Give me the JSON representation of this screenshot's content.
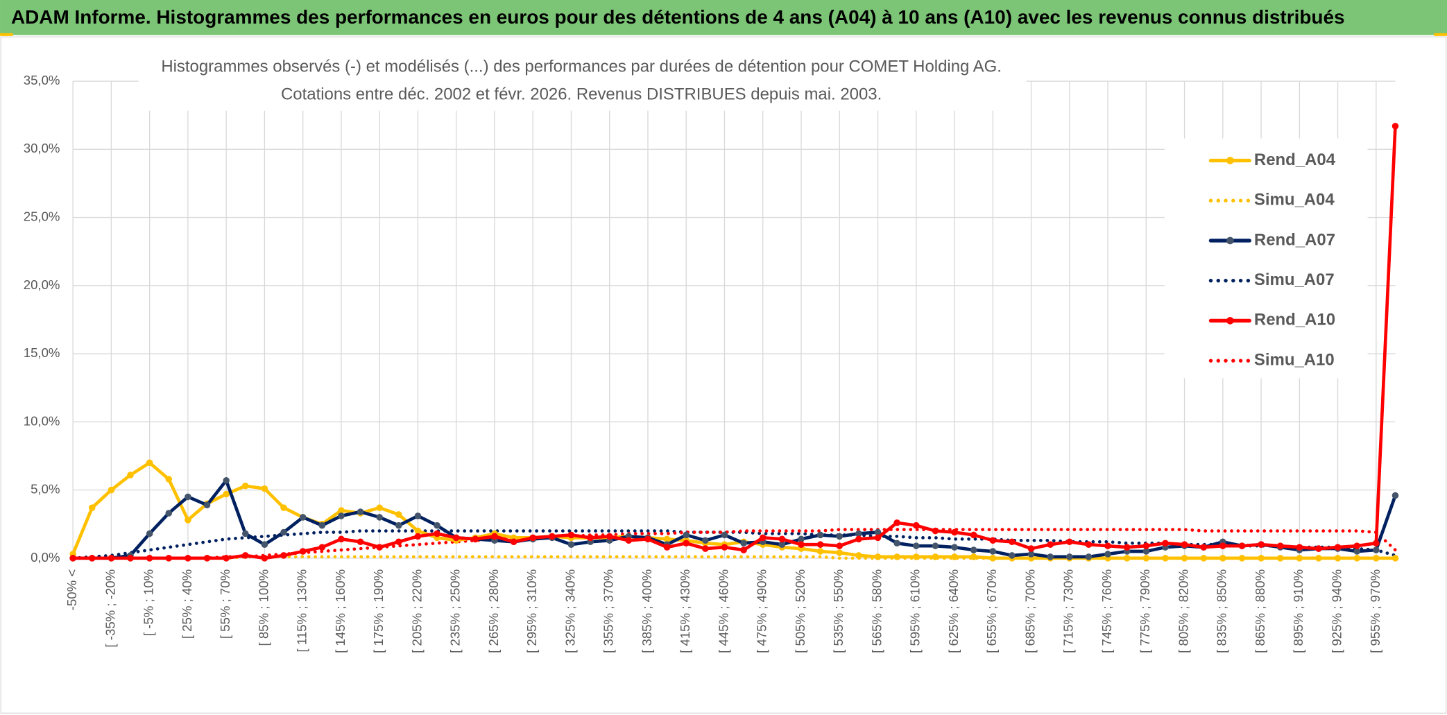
{
  "banner": {
    "title": "ADAM Informe. Histogrammes des performances en euros pour des détentions de 4 ans (A04) à 10 ans (A10) avec les revenus connus distribués"
  },
  "chart_data": {
    "type": "line",
    "title": "Histogrammes observés (-) et modélisés (...) des performances par durées de détention pour COMET Holding AG.",
    "subtitle": "Cotations entre déc. 2002 et févr. 2026. Revenus DISTRIBUES depuis mai. 2003.",
    "categories": [
      "-50% <",
      null,
      "[ -35% ; -20%",
      null,
      "[ -5% ; 10%",
      null,
      "[ 25% ; 40%",
      null,
      "[ 55% ; 70%",
      null,
      "[ 85% ; 100%",
      null,
      "[ 115% ; 130%",
      null,
      "[ 145% ; 160%",
      null,
      "[ 175% ; 190%",
      null,
      "[ 205% ; 220%",
      null,
      "[ 235% ; 250%",
      null,
      "[ 265% ; 280%",
      null,
      "[ 295% ; 310%",
      null,
      "[ 325% ; 340%",
      null,
      "[ 355% ; 370%",
      null,
      "[ 385% ; 400%",
      null,
      "[ 415% ; 430%",
      null,
      "[ 445% ; 460%",
      null,
      "[ 475% ; 490%",
      null,
      "[ 505% ; 520%",
      null,
      "[ 535% ; 550%",
      null,
      "[ 565% ; 580%",
      null,
      "[ 595% ; 610%",
      null,
      "[ 625% ; 640%",
      null,
      "[ 655% ; 670%",
      null,
      "[ 685% ; 700%",
      null,
      "[ 715% ; 730%",
      null,
      "[ 745% ; 760%",
      null,
      "[ 775% ; 790%",
      null,
      "[ 805% ; 820%",
      null,
      "[ 835% ; 850%",
      null,
      "[ 865% ; 880%",
      null,
      "[ 895% ; 910%",
      null,
      "[ 925% ; 940%",
      null,
      "[ 955% ; 970%",
      null
    ],
    "series": [
      {
        "name": "Rend_A04",
        "color": "#FFC000",
        "dashed": false,
        "markers": true,
        "values": [
          0.3,
          3.7,
          5.0,
          6.1,
          7.0,
          5.8,
          2.8,
          4.0,
          4.7,
          5.3,
          5.1,
          3.7,
          3.0,
          2.5,
          3.5,
          3.3,
          3.7,
          3.2,
          2.0,
          1.5,
          1.3,
          1.5,
          1.8,
          1.5,
          1.5,
          1.6,
          1.5,
          1.5,
          1.5,
          1.6,
          1.5,
          1.4,
          1.3,
          1.1,
          1.0,
          1.2,
          1.0,
          0.8,
          0.7,
          0.5,
          0.4,
          0.2,
          0.1,
          0.1,
          0.1,
          0.1,
          0.1,
          0.1,
          0,
          0,
          0,
          0,
          0,
          0,
          0,
          0,
          0,
          0,
          0,
          0,
          0,
          0,
          0,
          0,
          0,
          0,
          0,
          0,
          0,
          0
        ]
      },
      {
        "name": "Simu_A04",
        "color": "#FFC000",
        "dashed": true,
        "markers": false,
        "values": [
          0,
          0,
          0,
          0,
          0,
          0,
          0,
          0,
          0,
          0.1,
          0.1,
          0.1,
          0.1,
          0.1,
          0.1,
          0.1,
          0.1,
          0.1,
          0.1,
          0.1,
          0.1,
          0.1,
          0.1,
          0.1,
          0.1,
          0.1,
          0.1,
          0.1,
          0.1,
          0.1,
          0.1,
          0.1,
          0.1,
          0.1,
          0.1,
          0.1,
          0.1,
          0.1,
          0.1,
          0.1,
          0,
          0,
          0,
          0,
          0,
          0,
          0,
          0,
          0,
          0,
          0,
          0,
          0,
          0,
          0,
          0,
          0,
          0,
          0,
          0,
          0,
          0,
          0,
          0,
          0,
          0,
          0,
          0,
          0,
          0
        ]
      },
      {
        "name": "Rend_A07",
        "color": "#002060",
        "marker_color": "#44546A",
        "dashed": false,
        "markers": true,
        "values": [
          0,
          0,
          0,
          0.2,
          1.8,
          3.3,
          4.5,
          3.9,
          5.7,
          1.8,
          1.0,
          1.9,
          3.0,
          2.4,
          3.1,
          3.4,
          3.0,
          2.4,
          3.1,
          2.4,
          1.5,
          1.4,
          1.3,
          1.2,
          1.4,
          1.5,
          1.0,
          1.2,
          1.3,
          1.6,
          1.5,
          1.0,
          1.7,
          1.3,
          1.7,
          1.1,
          1.2,
          1.0,
          1.4,
          1.7,
          1.6,
          1.8,
          1.9,
          1.1,
          0.9,
          0.9,
          0.8,
          0.6,
          0.5,
          0.2,
          0.3,
          0.1,
          0.1,
          0.1,
          0.3,
          0.5,
          0.5,
          0.8,
          0.9,
          0.8,
          1.2,
          0.9,
          1.0,
          0.8,
          0.6,
          0.7,
          0.7,
          0.5,
          0.6,
          4.6
        ]
      },
      {
        "name": "Simu_A07",
        "color": "#002060",
        "dashed": true,
        "markers": false,
        "values": [
          0,
          0.1,
          0.2,
          0.4,
          0.6,
          0.8,
          1.0,
          1.2,
          1.4,
          1.5,
          1.6,
          1.7,
          1.8,
          1.9,
          1.9,
          2.0,
          2.0,
          2.0,
          2.0,
          2.0,
          2.0,
          2.0,
          2.0,
          2.0,
          2.0,
          2.0,
          2.0,
          2.0,
          2.0,
          2.0,
          2.0,
          2.0,
          1.9,
          1.9,
          1.9,
          1.9,
          1.8,
          1.8,
          1.8,
          1.7,
          1.7,
          1.7,
          1.6,
          1.6,
          1.5,
          1.5,
          1.4,
          1.4,
          1.4,
          1.3,
          1.3,
          1.3,
          1.2,
          1.2,
          1.2,
          1.1,
          1.1,
          1.1,
          1.0,
          1.0,
          1.0,
          0.9,
          0.9,
          0.9,
          0.8,
          0.8,
          0.8,
          0.7,
          0.6,
          0.2
        ]
      },
      {
        "name": "Rend_A10",
        "color": "#FF0000",
        "dashed": false,
        "markers": true,
        "values": [
          0,
          0,
          0,
          0,
          0,
          0,
          0,
          0,
          0,
          0.2,
          0,
          0.2,
          0.5,
          0.8,
          1.4,
          1.2,
          0.8,
          1.2,
          1.6,
          1.8,
          1.5,
          1.4,
          1.6,
          1.2,
          1.5,
          1.6,
          1.7,
          1.5,
          1.6,
          1.3,
          1.4,
          0.8,
          1.1,
          0.7,
          0.8,
          0.6,
          1.5,
          1.4,
          1.0,
          1.0,
          0.9,
          1.4,
          1.5,
          2.6,
          2.4,
          2.0,
          1.9,
          1.7,
          1.3,
          1.2,
          0.7,
          1.0,
          1.2,
          1.0,
          0.9,
          0.8,
          0.9,
          1.1,
          1.0,
          0.8,
          0.9,
          0.9,
          1.0,
          0.9,
          0.8,
          0.7,
          0.8,
          0.9,
          1.1,
          31.7
        ]
      },
      {
        "name": "Simu_A10",
        "color": "#FF0000",
        "dashed": true,
        "markers": false,
        "values": [
          0,
          0,
          0,
          0,
          0,
          0,
          0,
          0,
          0.1,
          0.1,
          0.2,
          0.3,
          0.4,
          0.5,
          0.6,
          0.7,
          0.8,
          0.9,
          1.0,
          1.1,
          1.2,
          1.3,
          1.4,
          1.5,
          1.5,
          1.6,
          1.6,
          1.7,
          1.7,
          1.8,
          1.8,
          1.8,
          1.9,
          1.9,
          1.9,
          2.0,
          2.0,
          2.0,
          2.0,
          2.0,
          2.1,
          2.1,
          2.1,
          2.1,
          2.1,
          2.1,
          2.1,
          2.1,
          2.1,
          2.1,
          2.1,
          2.1,
          2.1,
          2.1,
          2.1,
          2.1,
          2.1,
          2.1,
          2.1,
          2.0,
          2.0,
          2.0,
          2.0,
          2.0,
          2.0,
          2.0,
          2.0,
          2.0,
          1.9,
          0.6
        ]
      }
    ],
    "ylim": [
      0,
      35
    ],
    "yticks": [
      {
        "value": 0,
        "label": "0,0%"
      },
      {
        "value": 5,
        "label": "5,0%"
      },
      {
        "value": 10,
        "label": "10,0%"
      },
      {
        "value": 15,
        "label": "15,0%"
      },
      {
        "value": 20,
        "label": "20,0%"
      },
      {
        "value": 25,
        "label": "25,0%"
      },
      {
        "value": 30,
        "label": "30,0%"
      },
      {
        "value": 35,
        "label": "35,0%"
      }
    ],
    "grid": true,
    "legend": "right"
  }
}
